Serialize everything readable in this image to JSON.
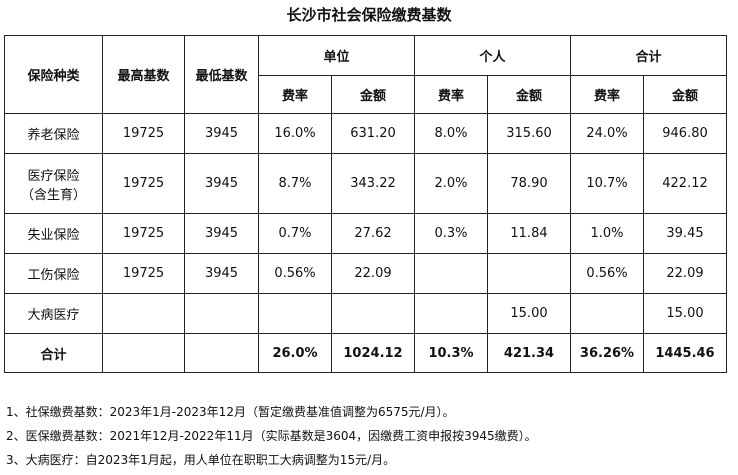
{
  "title": "长沙市社会保险缴费基数",
  "headers": {
    "type": "保险种类",
    "max_base": "最高基数",
    "min_base": "最低基数",
    "employer": "单位",
    "individual": "个人",
    "total": "合计",
    "rate": "费率",
    "amount": "金额"
  },
  "rows": [
    {
      "name": "养老保险",
      "sub": "",
      "max": "19725",
      "min": "3945",
      "emp_rate": "16.0%",
      "emp_amt": "631.20",
      "ind_rate": "8.0%",
      "ind_amt": "315.60",
      "tot_rate": "24.0%",
      "tot_amt": "946.80"
    },
    {
      "name": "医疗保险",
      "sub": "（含生育）",
      "max": "19725",
      "min": "3945",
      "emp_rate": "8.7%",
      "emp_amt": "343.22",
      "ind_rate": "2.0%",
      "ind_amt": "78.90",
      "tot_rate": "10.7%",
      "tot_amt": "422.12"
    },
    {
      "name": "失业保险",
      "sub": "",
      "max": "19725",
      "min": "3945",
      "emp_rate": "0.7%",
      "emp_amt": "27.62",
      "ind_rate": "0.3%",
      "ind_amt": "11.84",
      "tot_rate": "1.0%",
      "tot_amt": "39.45"
    },
    {
      "name": "工伤保险",
      "sub": "",
      "max": "19725",
      "min": "3945",
      "emp_rate": "0.56%",
      "emp_amt": "22.09",
      "ind_rate": "",
      "ind_amt": "",
      "tot_rate": "0.56%",
      "tot_amt": "22.09"
    },
    {
      "name": "大病医疗",
      "sub": "",
      "max": "",
      "min": "",
      "emp_rate": "",
      "emp_amt": "",
      "ind_rate": "",
      "ind_amt": "15.00",
      "tot_rate": "",
      "tot_amt": "15.00"
    }
  ],
  "summary": {
    "label": "合计",
    "emp_rate": "26.0%",
    "emp_amt": "1024.12",
    "ind_rate": "10.3%",
    "ind_amt": "421.34",
    "tot_rate": "36.26%",
    "tot_amt": "1445.46"
  },
  "notes": [
    "1、社保缴费基数：2023年1月-2023年12月（暂定缴费基准值调整为6575元/月）。",
    "2、医保缴费基数：2021年12月-2022年11月（实际基数是3604，因缴费工资申报按3945缴费）。",
    "3、大病医疗：自2023年1月起，用人单位在职职工大病调整为15元/月。"
  ]
}
